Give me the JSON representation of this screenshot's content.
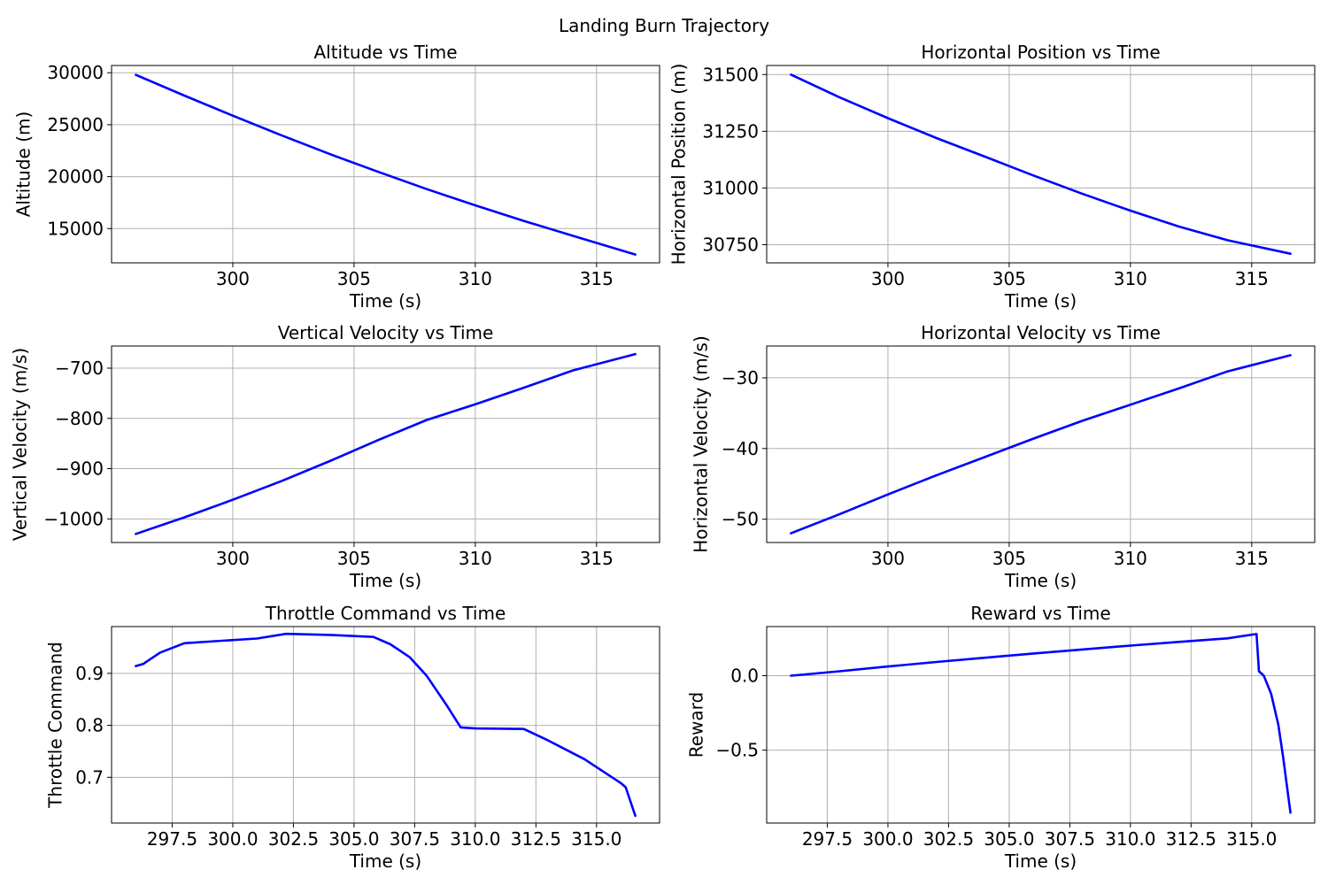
{
  "figure": {
    "title": "Landing Burn Trajectory"
  },
  "colors": {
    "line": "#0000ff",
    "grid": "#b0b0b0",
    "axes": "#000000"
  },
  "chart_data": [
    {
      "type": "line",
      "title": "Altitude vs Time",
      "xlabel": "Time (s)",
      "ylabel": "Altitude (m)",
      "grid": true,
      "xlim": [
        295,
        317.6
      ],
      "ylim": [
        11700,
        30700
      ],
      "xticks": [
        300,
        305,
        310,
        315
      ],
      "xtick_labels": [
        "300",
        "305",
        "310",
        "315"
      ],
      "yticks": [
        15000,
        20000,
        25000,
        30000
      ],
      "ytick_labels": [
        "15000",
        "20000",
        "25000",
        "30000"
      ],
      "series": [
        {
          "x": [
            296.0,
            298.0,
            300.0,
            302.0,
            304.0,
            306.0,
            308.0,
            310.0,
            312.0,
            314.0,
            316.6
          ],
          "y": [
            29800,
            27800,
            25870,
            23990,
            22170,
            20460,
            18800,
            17240,
            15740,
            14320,
            12500
          ]
        }
      ]
    },
    {
      "type": "line",
      "title": "Horizontal Position vs Time",
      "xlabel": "Time (s)",
      "ylabel": "Horizontal Position (m)",
      "grid": true,
      "xlim": [
        295,
        317.6
      ],
      "ylim": [
        30670,
        31540
      ],
      "xticks": [
        300,
        305,
        310,
        315
      ],
      "xtick_labels": [
        "300",
        "305",
        "310",
        "315"
      ],
      "yticks": [
        30750,
        31000,
        31250,
        31500
      ],
      "ytick_labels": [
        "30750",
        "31000",
        "31250",
        "31500"
      ],
      "series": [
        {
          "x": [
            296.0,
            298.0,
            300.0,
            302.0,
            304.0,
            306.0,
            308.0,
            310.0,
            312.0,
            314.0,
            316.6
          ],
          "y": [
            31500,
            31400,
            31308,
            31220,
            31138,
            31055,
            30975,
            30900,
            30830,
            30770,
            30710
          ]
        }
      ]
    },
    {
      "type": "line",
      "title": "Vertical Velocity vs Time",
      "xlabel": "Time (s)",
      "ylabel": "Vertical Velocity (m/s)",
      "grid": true,
      "xlim": [
        295,
        317.6
      ],
      "ylim": [
        -1047,
        -656
      ],
      "xticks": [
        300,
        305,
        310,
        315
      ],
      "xtick_labels": [
        "300",
        "305",
        "310",
        "315"
      ],
      "yticks": [
        -1000,
        -900,
        -800,
        -700
      ],
      "ytick_labels": [
        "−1000",
        "−900",
        "−800",
        "−700"
      ],
      "series": [
        {
          "x": [
            296.0,
            298.0,
            300.0,
            302.0,
            304.0,
            306.0,
            308.0,
            310.0,
            312.0,
            314.0,
            316.6
          ],
          "y": [
            -1030,
            -997,
            -962,
            -925,
            -885,
            -843,
            -803,
            -772,
            -739,
            -705,
            -672
          ]
        }
      ]
    },
    {
      "type": "line",
      "title": "Horizontal Velocity vs Time",
      "xlabel": "Time (s)",
      "ylabel": "Horizontal Velocity (m/s)",
      "grid": true,
      "xlim": [
        295,
        317.6
      ],
      "ylim": [
        -53.3,
        -25.5
      ],
      "xticks": [
        300,
        305,
        310,
        315
      ],
      "xtick_labels": [
        "300",
        "305",
        "310",
        "315"
      ],
      "yticks": [
        -50,
        -40,
        -30
      ],
      "ytick_labels": [
        "−50",
        "−40",
        "−30"
      ],
      "series": [
        {
          "x": [
            296.0,
            298.0,
            300.0,
            302.0,
            304.0,
            306.0,
            308.0,
            310.0,
            312.0,
            314.0,
            316.6
          ],
          "y": [
            -52,
            -49.3,
            -46.5,
            -43.8,
            -41.2,
            -38.6,
            -36.1,
            -33.8,
            -31.5,
            -29.1,
            -26.8
          ]
        }
      ]
    },
    {
      "type": "line",
      "title": "Throttle Command vs Time",
      "xlabel": "Time (s)",
      "ylabel": "Throttle Command",
      "grid": true,
      "xlim": [
        295,
        317.6
      ],
      "ylim": [
        0.612,
        0.99
      ],
      "xticks": [
        297.5,
        300,
        302.5,
        305,
        307.5,
        310,
        312.5,
        315
      ],
      "xtick_labels": [
        "297.5",
        "300.0",
        "302.5",
        "305.0",
        "307.5",
        "310.0",
        "312.5",
        "315.0"
      ],
      "yticks": [
        0.7,
        0.8,
        0.9
      ],
      "ytick_labels": [
        "0.7",
        "0.8",
        "0.9"
      ],
      "series": [
        {
          "x": [
            296.0,
            296.3,
            297.0,
            298.0,
            299.0,
            301.0,
            302.2,
            304.0,
            305.8,
            306.5,
            307.3,
            308.0,
            308.8,
            309.4,
            310.0,
            312.0,
            313.0,
            314.5,
            316.0,
            316.2,
            316.6
          ],
          "y": [
            0.914,
            0.918,
            0.94,
            0.958,
            0.961,
            0.967,
            0.976,
            0.974,
            0.97,
            0.956,
            0.931,
            0.895,
            0.84,
            0.796,
            0.794,
            0.793,
            0.771,
            0.735,
            0.689,
            0.681,
            0.626
          ]
        }
      ]
    },
    {
      "type": "line",
      "title": "Reward vs Time",
      "xlabel": "Time (s)",
      "ylabel": "Reward",
      "grid": true,
      "xlim": [
        295,
        317.6
      ],
      "ylim": [
        -0.99,
        0.33
      ],
      "xticks": [
        297.5,
        300,
        302.5,
        305,
        307.5,
        310,
        312.5,
        315
      ],
      "xtick_labels": [
        "297.5",
        "300.0",
        "302.5",
        "305.0",
        "307.5",
        "310.0",
        "312.5",
        "315.0"
      ],
      "yticks": [
        -0.5,
        0.0
      ],
      "ytick_labels": [
        "−0.5",
        "0.0"
      ],
      "series": [
        {
          "x": [
            296.0,
            298.0,
            300.0,
            302.0,
            304.0,
            306.0,
            308.0,
            310.0,
            312.0,
            314.0,
            315.2,
            315.3,
            315.5,
            315.8,
            316.1,
            316.3,
            316.5,
            316.6
          ],
          "y": [
            0.0,
            0.03,
            0.062,
            0.092,
            0.121,
            0.149,
            0.176,
            0.202,
            0.227,
            0.251,
            0.28,
            0.03,
            0.0,
            -0.12,
            -0.33,
            -0.55,
            -0.8,
            -0.92
          ]
        }
      ]
    }
  ]
}
